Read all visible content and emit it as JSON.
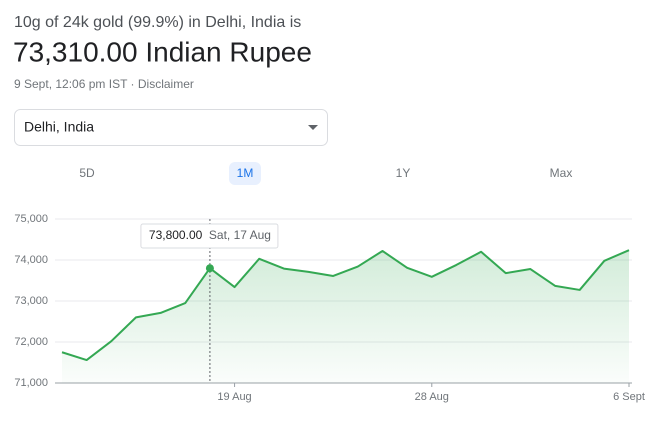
{
  "header": {
    "query": "10g of 24k gold (99.9%) in Delhi, India is",
    "price": "73,310.00 Indian Rupee",
    "timestamp": "9 Sept, 12:06 pm IST",
    "separator": "·",
    "disclaimer": "Disclaimer"
  },
  "location_select": {
    "value": "Delhi, India"
  },
  "tabs": {
    "items": [
      "5D",
      "1M",
      "1Y",
      "Max"
    ],
    "active": "1M"
  },
  "chart_data": {
    "type": "line",
    "categories": [
      null,
      null,
      null,
      null,
      null,
      null,
      null,
      "19 Aug",
      null,
      null,
      null,
      null,
      null,
      null,
      null,
      "28 Aug",
      null,
      null,
      null,
      null,
      null,
      null,
      null,
      "6 Sept"
    ],
    "series": [
      {
        "name": "Price",
        "color": "#34a853",
        "values": [
          71750,
          71560,
          72020,
          72600,
          72710,
          72950,
          73800,
          73340,
          74030,
          73790,
          73710,
          73610,
          73840,
          74220,
          73810,
          73590,
          73880,
          74200,
          73680,
          73780,
          73370,
          73270,
          73980,
          74240
        ]
      }
    ],
    "ylim": [
      71000,
      75000
    ],
    "yticks": [
      {
        "value": 71000,
        "label": "71,000"
      },
      {
        "value": 72000,
        "label": "72,000"
      },
      {
        "value": 73000,
        "label": "73,000"
      },
      {
        "value": 74000,
        "label": "74,000"
      },
      {
        "value": 75000,
        "label": "75,000"
      }
    ],
    "grid": true,
    "tooltip": {
      "value": 73800,
      "label": "73,800.00",
      "date": "Sat, 17 Aug"
    }
  }
}
